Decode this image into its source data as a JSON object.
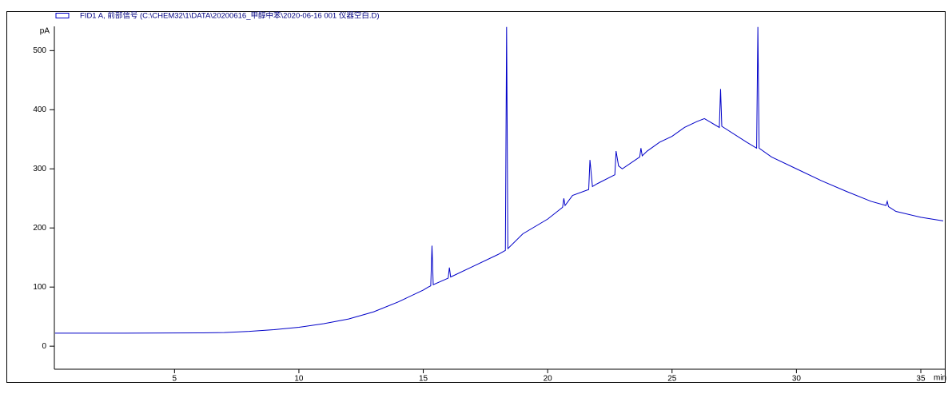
{
  "chart_data": {
    "type": "line",
    "x_label": "min",
    "y_label": "pA",
    "x": [
      0.2,
      3,
      6,
      7,
      8,
      9,
      10,
      11,
      12,
      13,
      14,
      15,
      15.2,
      15.3,
      15.35,
      15.4,
      16,
      16.05,
      16.1,
      16.15,
      17,
      18,
      18.3,
      18.35,
      18.4,
      19,
      20,
      20.6,
      20.65,
      20.7,
      21,
      21.65,
      21.7,
      21.8,
      22,
      22.7,
      22.75,
      22.85,
      23,
      23.7,
      23.75,
      23.8,
      24,
      24.5,
      25,
      25.5,
      26,
      26.3,
      26.9,
      26.95,
      27,
      28,
      28.4,
      28.45,
      28.5,
      29,
      30,
      31,
      32,
      33,
      33.6,
      33.65,
      33.7,
      34,
      35,
      35.9
    ],
    "series": [
      {
        "name": "FID1 A, 前部信号 (C:\\CHEM32\\1\\DATA\\20200616_甲醇中苯\\2020-06-16 001 仪器空白.D)",
        "color": "#0000c8",
        "values": [
          22,
          22,
          22.5,
          23,
          25,
          28,
          32,
          38,
          46,
          58,
          75,
          95,
          100,
          102,
          170,
          104,
          115,
          133,
          117,
          118,
          135,
          155,
          162,
          540,
          165,
          190,
          215,
          235,
          250,
          238,
          255,
          265,
          315,
          270,
          275,
          290,
          330,
          305,
          300,
          320,
          335,
          322,
          330,
          345,
          355,
          370,
          380,
          385,
          370,
          435,
          372,
          345,
          335,
          540,
          335,
          320,
          300,
          280,
          262,
          245,
          238,
          245,
          236,
          228,
          218,
          212
        ]
      }
    ],
    "xlim": [
      0.17,
      35.9
    ],
    "xticks": [
      5,
      10,
      15,
      20,
      25,
      30,
      35
    ],
    "ylim": [
      -39,
      541
    ],
    "yticks": [
      0,
      100,
      200,
      300,
      400,
      500
    ]
  }
}
